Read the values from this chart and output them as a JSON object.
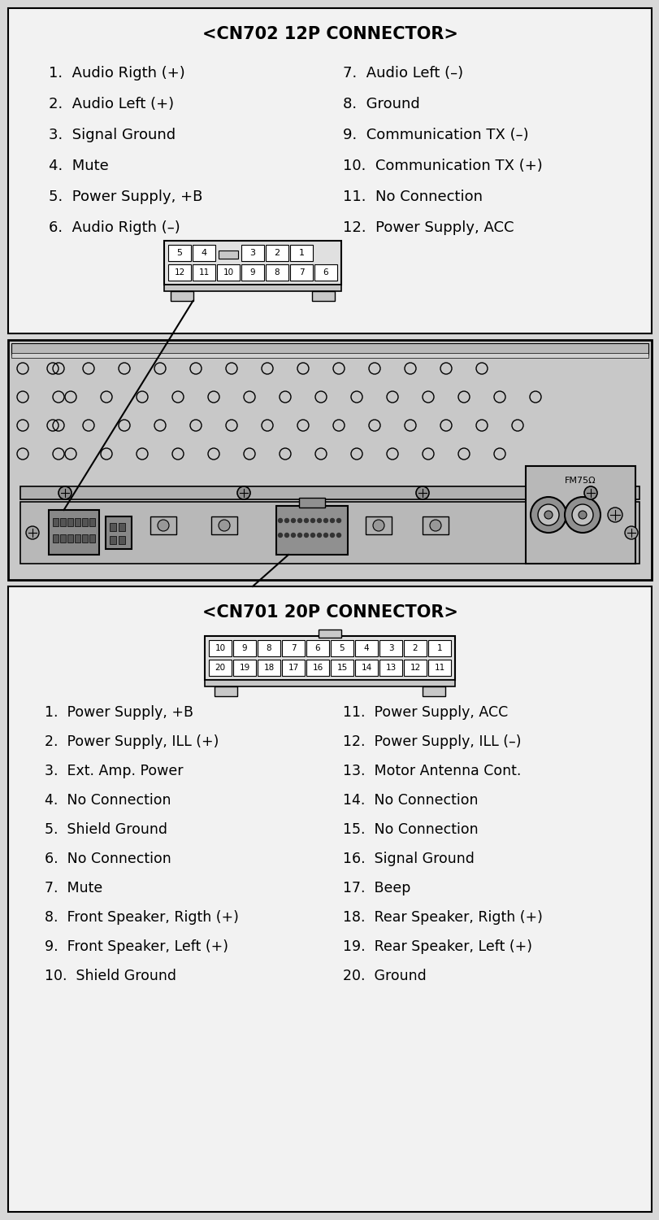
{
  "bg_color": "#d8d8d8",
  "box_fc": "#f2f2f2",
  "title_cn702": "<CN702 12P CONNECTOR>",
  "cn702_left": [
    "1.  Audio Rigth (+)",
    "2.  Audio Left (+)",
    "3.  Signal Ground",
    "4.  Mute",
    "5.  Power Supply, +B",
    "6.  Audio Rigth (–)"
  ],
  "cn702_right": [
    "7.  Audio Left (–)",
    "8.  Ground",
    "9.  Communication TX (–)",
    "10.  Communication TX (+)",
    "11.  No Connection",
    "12.  Power Supply, ACC"
  ],
  "cn702_top_vals": [
    "5",
    "4",
    "3",
    "2",
    "1"
  ],
  "cn702_top_pos": [
    0,
    1,
    3,
    4,
    5
  ],
  "cn702_bot_vals": [
    "12",
    "11",
    "10",
    "9",
    "8",
    "7",
    "6"
  ],
  "title_cn701": "<CN701 20P CONNECTOR>",
  "cn701_top_row": [
    "10",
    "9",
    "8",
    "7",
    "6",
    "5",
    "4",
    "3",
    "2",
    "1"
  ],
  "cn701_bot_row": [
    "20",
    "19",
    "18",
    "17",
    "16",
    "15",
    "14",
    "13",
    "12",
    "11"
  ],
  "cn701_left": [
    "1.  Power Supply, +B",
    "2.  Power Supply, ILL (+)",
    "3.  Ext. Amp. Power",
    "4.  No Connection",
    "5.  Shield Ground",
    "6.  No Connection",
    "7.  Mute",
    "8.  Front Speaker, Rigth (+)",
    "9.  Front Speaker, Left (+)",
    "10.  Shield Ground"
  ],
  "cn701_right": [
    "11.  Power Supply, ACC",
    "12.  Power Supply, ILL (–)",
    "13.  Motor Antenna Cont.",
    "14.  No Connection",
    "15.  No Connection",
    "16.  Signal Ground",
    "17.  Beep",
    "18.  Rear Speaker, Rigth (+)",
    "19.  Rear Speaker, Left (+)",
    "20.  Ground"
  ]
}
